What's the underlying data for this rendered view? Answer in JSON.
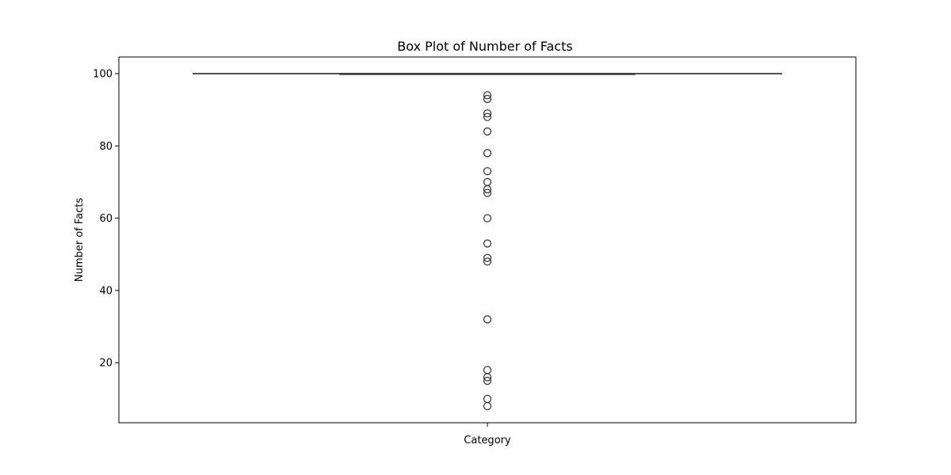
{
  "chart_data": {
    "type": "box",
    "title": "Box Plot of Number of Facts",
    "xlabel": "Category",
    "ylabel": "Number of Facts",
    "ylim": [
      3.4,
      104.6
    ],
    "yticks": [
      20,
      40,
      60,
      80,
      100
    ],
    "grid": false,
    "legend": "none",
    "box_color": "#3a3a3a",
    "box": {
      "min": 100,
      "q1": 100,
      "median": 100,
      "q3": 100,
      "max": 100
    },
    "outliers": [
      94,
      93,
      89,
      88,
      84,
      78,
      73,
      70,
      68,
      67,
      60,
      53,
      49,
      48,
      32,
      18,
      16,
      15,
      10,
      8
    ]
  }
}
